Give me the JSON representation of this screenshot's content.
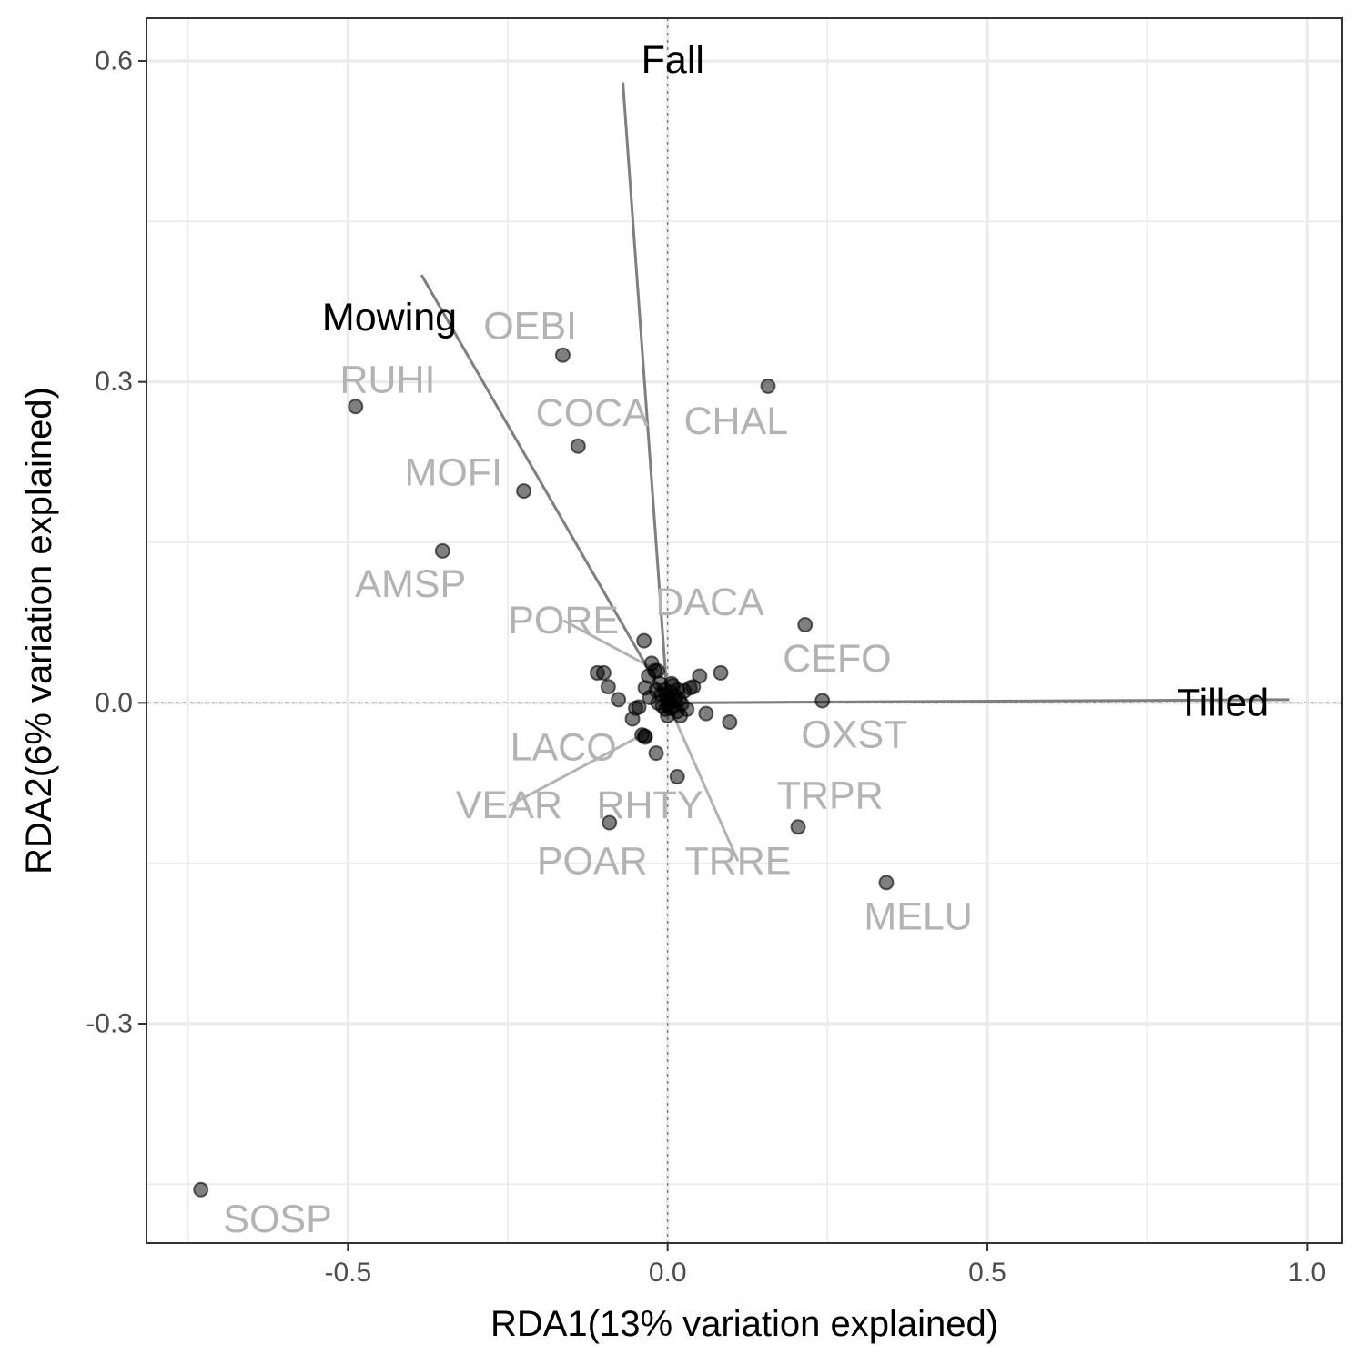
{
  "chart_data": {
    "type": "scatter",
    "title": "",
    "xlabel": "RDA1(13% variation explained)",
    "ylabel": "RDA2(6% variation explained)",
    "xlim": [
      -0.815,
      1.055
    ],
    "ylim": [
      -0.505,
      0.64
    ],
    "xticks": [
      -0.5,
      0.0,
      0.5,
      1.0
    ],
    "xtick_labels": [
      "-0.5",
      "0.0",
      "0.5",
      "1.0"
    ],
    "yticks": [
      -0.3,
      0.0,
      0.3,
      0.6
    ],
    "ytick_labels": [
      "-0.3",
      "0.0",
      "0.3",
      "0.6"
    ],
    "x_minor": [
      -0.75,
      -0.25,
      0.25,
      0.75
    ],
    "y_minor": [
      -0.45,
      -0.15,
      0.15,
      0.45
    ],
    "grid": true,
    "zero_lines": true,
    "point_color": "#000000",
    "species_label_color": "#b3b3b3",
    "vector_color": "#7f7f7f",
    "vectors": [
      {
        "name": "Fall",
        "x": -0.07,
        "y": 0.58,
        "label_x": 0.008,
        "label_y": 0.601
      },
      {
        "name": "Mowing",
        "x": -0.385,
        "y": 0.4,
        "label_x": -0.435,
        "label_y": 0.36
      },
      {
        "name": "Tilled",
        "x": 0.973,
        "y": 0.003,
        "label_x": 0.868,
        "label_y": 0.0
      }
    ],
    "species": [
      {
        "label": "OEBI",
        "x": -0.164,
        "y": 0.325,
        "label_x": -0.215,
        "label_y": 0.352
      },
      {
        "label": "RUHI",
        "x": -0.488,
        "y": 0.277,
        "label_x": -0.438,
        "label_y": 0.302
      },
      {
        "label": "COCA",
        "x": -0.14,
        "y": 0.24,
        "label_x": -0.118,
        "label_y": 0.271
      },
      {
        "label": "CHAL",
        "x": 0.157,
        "y": 0.296,
        "label_x": 0.107,
        "label_y": 0.263
      },
      {
        "label": "MOFI",
        "x": -0.225,
        "y": 0.198,
        "label_x": -0.335,
        "label_y": 0.215
      },
      {
        "label": "AMSP",
        "x": -0.352,
        "y": 0.142,
        "label_x": -0.402,
        "label_y": 0.111
      },
      {
        "label": "DACA",
        "x": 0.001,
        "y": 0.004,
        "label_x": 0.066,
        "label_y": 0.094
      },
      {
        "label": "PORE",
        "x": -0.016,
        "y": 0.03,
        "label_x": -0.163,
        "label_y": 0.077,
        "leader": true
      },
      {
        "label": "CEFO",
        "x": 0.215,
        "y": 0.073,
        "label_x": 0.265,
        "label_y": 0.041
      },
      {
        "label": "OXST",
        "x": 0.242,
        "y": 0.002,
        "label_x": 0.292,
        "label_y": -0.03
      },
      {
        "label": "LACO",
        "x": -0.036,
        "y": -0.031,
        "label_x": -0.163,
        "label_y": -0.042
      },
      {
        "label": "VEAR",
        "x": -0.04,
        "y": -0.03,
        "label_x": -0.248,
        "label_y": -0.096,
        "leader": true
      },
      {
        "label": "RHTY",
        "x": 0.015,
        "y": -0.069,
        "label_x": -0.028,
        "label_y": -0.096
      },
      {
        "label": "TRPR",
        "x": 0.204,
        "y": -0.116,
        "label_x": 0.254,
        "label_y": -0.087
      },
      {
        "label": "POAR",
        "x": -0.091,
        "y": -0.112,
        "label_x": -0.118,
        "label_y": -0.148
      },
      {
        "label": "TRRE",
        "x": 0.004,
        "y": -0.005,
        "label_x": 0.11,
        "label_y": -0.148,
        "leader": true
      },
      {
        "label": "MELU",
        "x": 0.342,
        "y": -0.168,
        "label_x": 0.392,
        "label_y": -0.2
      },
      {
        "label": "SOSP",
        "x": -0.73,
        "y": -0.455,
        "label_x": -0.61,
        "label_y": -0.483
      }
    ],
    "other_points": [
      [
        -0.037,
        0.058
      ],
      [
        -0.11,
        0.028
      ],
      [
        -0.1,
        0.028
      ],
      [
        -0.093,
        0.015
      ],
      [
        -0.077,
        0.003
      ],
      [
        -0.055,
        -0.015
      ],
      [
        -0.05,
        -0.005
      ],
      [
        -0.045,
        -0.004
      ],
      [
        -0.035,
        -0.032
      ],
      [
        -0.018,
        -0.047
      ],
      [
        -0.025,
        0.037
      ],
      [
        -0.03,
        0.025
      ],
      [
        -0.02,
        0.03
      ],
      [
        -0.012,
        0.018
      ],
      [
        -0.035,
        0.014
      ],
      [
        -0.028,
        0.005
      ],
      [
        -0.015,
        0.0
      ],
      [
        -0.008,
        -0.003
      ],
      [
        -0.005,
        0.012
      ],
      [
        -0.002,
        0.006
      ],
      [
        0.0,
        -0.002
      ],
      [
        0.004,
        0.01
      ],
      [
        0.008,
        -0.004
      ],
      [
        0.012,
        0.006
      ],
      [
        0.015,
        -0.008
      ],
      [
        0.018,
        0.003
      ],
      [
        0.022,
        -0.001
      ],
      [
        0.026,
        0.011
      ],
      [
        0.03,
        -0.006
      ],
      [
        0.035,
        0.014
      ],
      [
        0.04,
        0.015
      ],
      [
        0.05,
        0.025
      ],
      [
        0.083,
        0.028
      ],
      [
        0.06,
        -0.01
      ],
      [
        0.097,
        -0.018
      ],
      [
        0.02,
        -0.012
      ],
      [
        0.0,
        -0.012
      ],
      [
        0.006,
        0.018
      ],
      [
        -0.01,
        0.008
      ],
      [
        0.003,
        0.0
      ],
      [
        -0.003,
        -0.006
      ],
      [
        0.012,
        0.002
      ],
      [
        0.008,
        0.016
      ],
      [
        0.016,
        0.012
      ],
      [
        -0.018,
        0.012
      ]
    ]
  }
}
